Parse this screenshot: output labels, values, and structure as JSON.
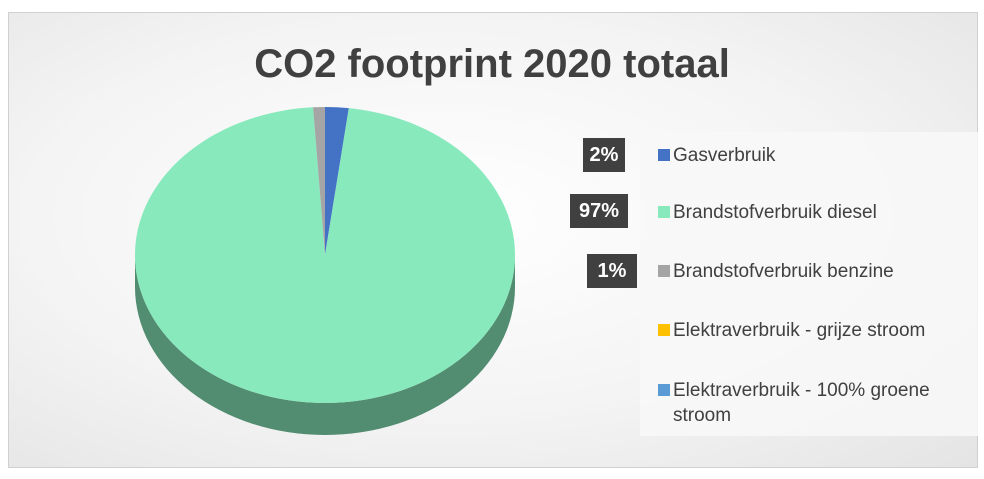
{
  "chart_data": {
    "type": "pie",
    "title": "CO2 footprint 2020 totaal",
    "categories": [
      "Gasverbruik",
      "Brandstofverbruik diesel",
      "Brandstofverbruik benzine",
      "Elektraverbruik - grijze stroom",
      "Elektraverbruik - 100% groene stroom"
    ],
    "values": [
      2,
      97,
      1,
      0,
      0
    ],
    "value_labels": [
      "2%",
      "97%",
      "1%",
      null,
      null
    ],
    "colors": [
      "#4472c4",
      "#88e9bd",
      "#a5a5a5",
      "#ffc000",
      "#5b9bd5"
    ]
  }
}
